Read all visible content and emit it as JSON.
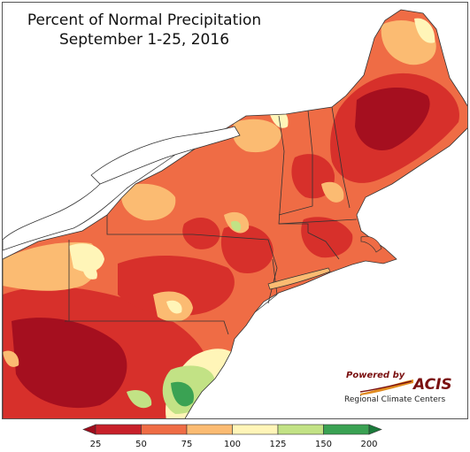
{
  "title": {
    "line1": "Percent of Normal Precipitation",
    "line2": "September 1-25, 2016"
  },
  "logo": {
    "powered_by": "Powered by",
    "brand": "ACIS",
    "subtitle": "Regional Climate Centers"
  },
  "legend": {
    "ticks": [
      "25",
      "50",
      "75",
      "100",
      "125",
      "150",
      "200"
    ],
    "bins": [
      {
        "from": 25,
        "to": 50,
        "color": "#c8202a"
      },
      {
        "from": 50,
        "to": 75,
        "color": "#ef6c45"
      },
      {
        "from": 75,
        "to": 100,
        "color": "#fbbb72"
      },
      {
        "from": 100,
        "to": 125,
        "color": "#fff5b8"
      },
      {
        "from": 125,
        "to": 150,
        "color": "#c2e285"
      },
      {
        "from": 150,
        "to": 200,
        "color": "#3aa253"
      }
    ],
    "below_color": "#9e0d1c",
    "above_color": "#1a7a3a"
  },
  "colors": {
    "very_dry": "#a50f1f",
    "dry": "#d7302b",
    "below": "#ef6c45",
    "near": "#fbbb72",
    "normal": "#fff5b8",
    "wet": "#c2e285",
    "very_wet": "#3aa253",
    "water": "#ffffff"
  }
}
